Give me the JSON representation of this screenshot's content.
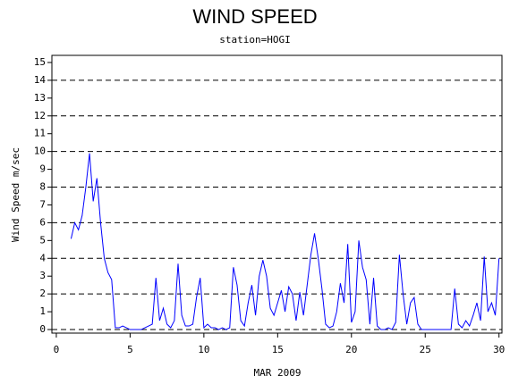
{
  "chart_data": {
    "type": "line",
    "title": "WIND SPEED",
    "subtitle": "station=HOGI",
    "x_label": "MAR 2009",
    "y_label": "Wind Speed m/sec",
    "xlim": [
      -0.3,
      30.2
    ],
    "xticks": [
      0,
      5,
      10,
      15,
      20,
      25,
      30
    ],
    "ylim": [
      -0.2,
      15.4
    ],
    "yticks": [
      0,
      1,
      2,
      3,
      4,
      5,
      6,
      7,
      8,
      9,
      10,
      11,
      12,
      13,
      14,
      15
    ],
    "grid_lines": [
      0,
      2,
      4,
      6,
      8,
      10,
      12,
      14
    ],
    "grid_style": "dashed",
    "x": [
      1,
      1.25,
      1.5,
      1.75,
      2,
      2.25,
      2.5,
      2.75,
      3,
      3.25,
      3.5,
      3.75,
      4,
      4.25,
      4.5,
      4.75,
      5,
      5.25,
      5.5,
      5.75,
      6,
      6.25,
      6.5,
      6.75,
      7,
      7.25,
      7.5,
      7.75,
      8,
      8.25,
      8.5,
      8.75,
      9,
      9.25,
      9.5,
      9.75,
      10,
      10.25,
      10.5,
      10.75,
      11,
      11.25,
      11.5,
      11.75,
      12,
      12.25,
      12.5,
      12.75,
      13,
      13.25,
      13.5,
      13.75,
      14,
      14.25,
      14.5,
      14.75,
      15,
      15.25,
      15.5,
      15.75,
      16,
      16.25,
      16.5,
      16.75,
      17,
      17.25,
      17.5,
      17.75,
      18,
      18.25,
      18.5,
      18.75,
      19,
      19.25,
      19.5,
      19.75,
      20,
      20.25,
      20.5,
      20.75,
      21,
      21.25,
      21.5,
      21.75,
      22,
      22.25,
      22.5,
      22.75,
      23,
      23.25,
      23.5,
      23.75,
      24,
      24.25,
      24.5,
      24.75,
      25,
      25.25,
      25.5,
      25.75,
      26,
      26.25,
      26.5,
      26.75,
      27,
      27.25,
      27.5,
      27.75,
      28,
      28.25,
      28.5,
      28.75,
      29,
      29.25,
      29.5,
      29.75,
      30
    ],
    "series": [
      {
        "name": "Wind Speed",
        "color": "#0000ff",
        "values": [
          5.1,
          6.0,
          5.6,
          6.4,
          8.0,
          9.9,
          7.2,
          8.5,
          6.0,
          4.0,
          3.2,
          2.8,
          0.1,
          0.1,
          0.2,
          0.1,
          0,
          0,
          0,
          0,
          0.1,
          0.2,
          0.3,
          2.9,
          0.5,
          1.2,
          0.3,
          0.1,
          0.5,
          3.7,
          0.8,
          0.2,
          0.2,
          0.3,
          1.8,
          2.9,
          0.1,
          0.3,
          0.1,
          0.1,
          0,
          0.1,
          0,
          0.1,
          3.5,
          2.5,
          0.5,
          0.2,
          1.5,
          2.5,
          0.8,
          3.0,
          3.9,
          3.0,
          1.2,
          0.8,
          1.5,
          2.2,
          1.0,
          2.4,
          2.0,
          0.5,
          2.1,
          0.8,
          2.5,
          4.2,
          5.4,
          4.0,
          2.3,
          0.3,
          0.1,
          0.2,
          1.0,
          2.6,
          1.5,
          4.8,
          0.4,
          1.0,
          5.0,
          3.5,
          2.8,
          0.3,
          2.9,
          0.2,
          0,
          0,
          0.1,
          0,
          0.4,
          4.2,
          2.0,
          0.3,
          1.5,
          1.8,
          0.3,
          0,
          0,
          0,
          0,
          0,
          0,
          0,
          0,
          0,
          2.3,
          0.3,
          0.1,
          0.5,
          0.2,
          0.8,
          1.5,
          0.5,
          4.1,
          1.0,
          1.5,
          0.8,
          4.0
        ]
      }
    ]
  }
}
